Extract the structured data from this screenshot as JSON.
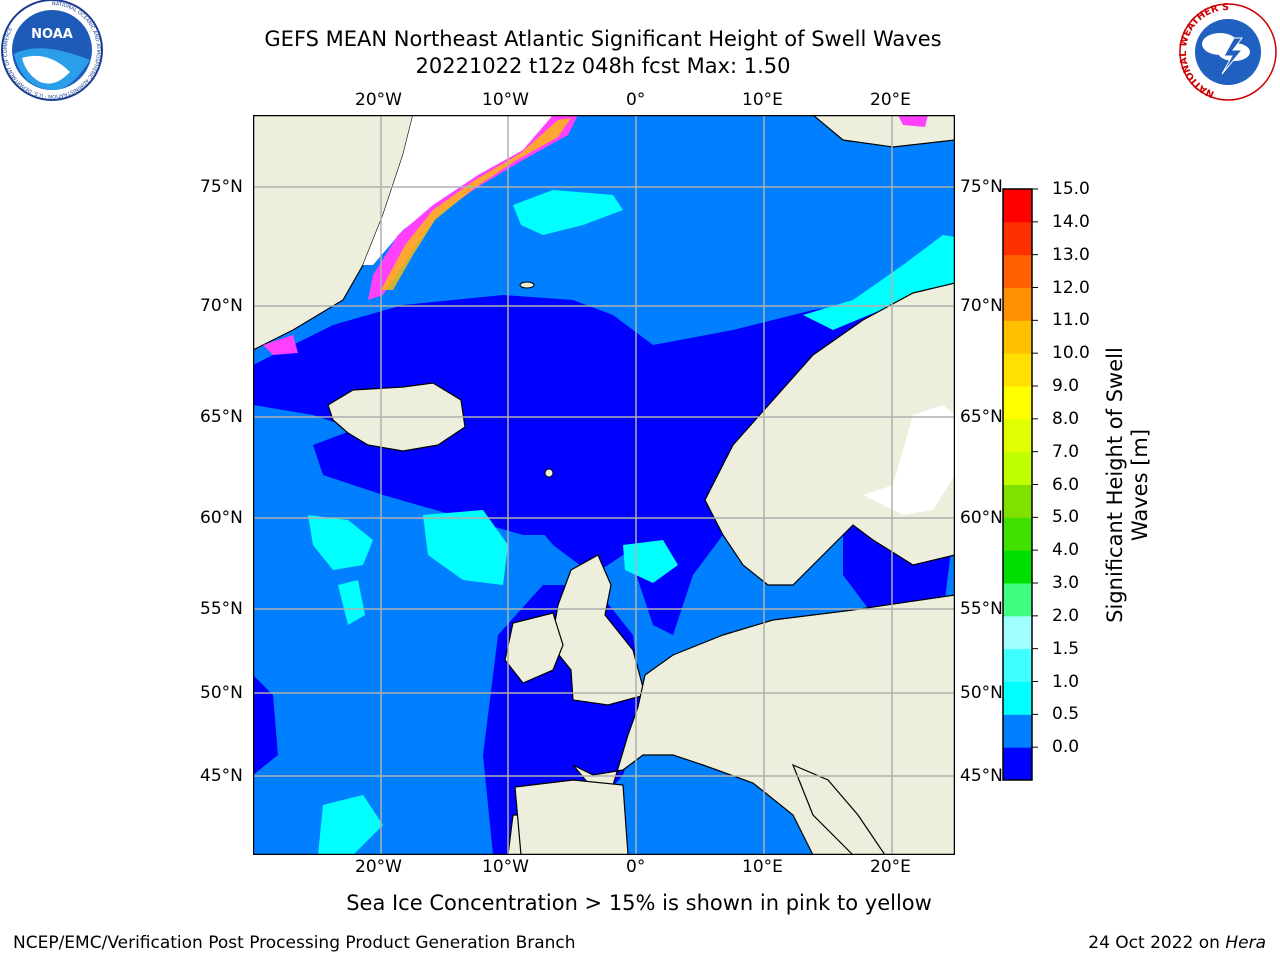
{
  "title": {
    "line1": "GEFS MEAN Northeast Atlantic Significant Height of Swell Waves",
    "line2": "20221022 t12z 048h fcst   Max: 1.50"
  },
  "axes": {
    "lon_labels": [
      "20°W",
      "10°W",
      "0°",
      "10°E",
      "20°E"
    ],
    "lat_labels": [
      "75°N",
      "70°N",
      "65°N",
      "60°N",
      "55°N",
      "50°N",
      "45°N"
    ]
  },
  "colorbar": {
    "title": "Significant Height of Swell Waves [m]",
    "labels": [
      "15.0",
      "14.0",
      "13.0",
      "12.0",
      "11.0",
      "10.0",
      "9.0",
      "8.0",
      "7.0",
      "6.0",
      "5.0",
      "4.0",
      "3.0",
      "2.0",
      "1.5",
      "1.0",
      "0.5",
      "0.0"
    ],
    "colors": [
      "#0000ff",
      "#0080ff",
      "#00ffff",
      "#40ffff",
      "#a0ffff",
      "#40ff80",
      "#00e000",
      "#40e000",
      "#80e000",
      "#c0ff00",
      "#e0ff00",
      "#ffff00",
      "#ffe000",
      "#ffc000",
      "#ff9000",
      "#ff6000",
      "#ff3000",
      "#ff0000"
    ]
  },
  "legend_note": "Sea Ice Concentration > 15% is shown in pink to yellow",
  "footer": {
    "credit": "NCEP/EMC/Verification Post Processing Product Generation Branch",
    "date": "24 Oct 2022 on",
    "system": "Hera"
  },
  "logos": {
    "noaa": "NOAA",
    "noaa_ring_text": "NATIONAL OCEANIC AND ATMOSPHERIC ADMINISTRATION · U.S. DEPARTMENT OF COMMERCE",
    "nws_ring_text": "NATIONAL WEATHER SERVICE"
  },
  "map_colors": {
    "land": "#eeeedd",
    "ocean_low": "#0000ff",
    "ocean_mid": "#0080ff",
    "ocean_high": "#00ffff",
    "ice": "#ff40ff",
    "grid": "#b0b0b0"
  }
}
